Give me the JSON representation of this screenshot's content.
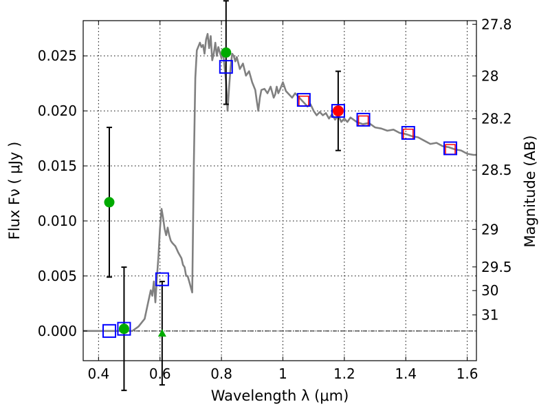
{
  "chart_data": {
    "type": "line",
    "xlabel": "Wavelength  λ (μm)",
    "ylabel": "Flux  Fν  ( μJy )",
    "y2label": "Magnitude (AB)",
    "xlim": [
      0.35,
      1.63
    ],
    "ylim": [
      -0.0027,
      0.0282
    ],
    "grid": true,
    "x_ticks": [
      {
        "value": 0.4,
        "label": "0.4"
      },
      {
        "value": 0.6,
        "label": "0.6"
      },
      {
        "value": 0.8,
        "label": "0.8"
      },
      {
        "value": 1.0,
        "label": "1"
      },
      {
        "value": 1.2,
        "label": "1.2"
      },
      {
        "value": 1.4,
        "label": "1.4"
      },
      {
        "value": 1.6,
        "label": "1.6"
      }
    ],
    "y_ticks": [
      {
        "value": 0.0,
        "label": "0.000"
      },
      {
        "value": 0.005,
        "label": "0.005"
      },
      {
        "value": 0.01,
        "label": "0.010"
      },
      {
        "value": 0.015,
        "label": "0.015"
      },
      {
        "value": 0.02,
        "label": "0.020"
      },
      {
        "value": 0.025,
        "label": "0.025"
      }
    ],
    "y2_ticks": [
      {
        "label": "27.8",
        "flux": 0.02787
      },
      {
        "label": "28",
        "flux": 0.02318
      },
      {
        "label": "28.2",
        "flux": 0.01928
      },
      {
        "label": "28.5",
        "flux": 0.01462
      },
      {
        "label": "29",
        "flux": 0.00923
      },
      {
        "label": "29.5",
        "flux": 0.00582
      },
      {
        "label": "30",
        "flux": 0.00367
      },
      {
        "label": "31",
        "flux": 0.00146
      }
    ],
    "series": [
      {
        "name": "model spectrum",
        "color": "#808080",
        "points": [
          [
            0.35,
            0.0
          ],
          [
            0.47,
            0.0
          ],
          [
            0.51,
            0.0
          ],
          [
            0.53,
            0.0004
          ],
          [
            0.55,
            0.0011
          ],
          [
            0.56,
            0.0024
          ],
          [
            0.57,
            0.0037
          ],
          [
            0.575,
            0.0032
          ],
          [
            0.58,
            0.0045
          ],
          [
            0.585,
            0.0026
          ],
          [
            0.59,
            0.0049
          ],
          [
            0.595,
            0.0068
          ],
          [
            0.6,
            0.0093
          ],
          [
            0.605,
            0.0111
          ],
          [
            0.61,
            0.0103
          ],
          [
            0.615,
            0.0093
          ],
          [
            0.62,
            0.0087
          ],
          [
            0.625,
            0.0094
          ],
          [
            0.63,
            0.0087
          ],
          [
            0.635,
            0.0082
          ],
          [
            0.64,
            0.008
          ],
          [
            0.65,
            0.0077
          ],
          [
            0.66,
            0.0071
          ],
          [
            0.67,
            0.0066
          ],
          [
            0.675,
            0.006
          ],
          [
            0.68,
            0.0058
          ],
          [
            0.685,
            0.005
          ],
          [
            0.69,
            0.005
          ],
          [
            0.695,
            0.0045
          ],
          [
            0.7,
            0.004
          ],
          [
            0.705,
            0.0035
          ],
          [
            0.71,
            0.015
          ],
          [
            0.715,
            0.023
          ],
          [
            0.72,
            0.0255
          ],
          [
            0.73,
            0.0262
          ],
          [
            0.735,
            0.0258
          ],
          [
            0.74,
            0.026
          ],
          [
            0.745,
            0.0252
          ],
          [
            0.75,
            0.0265
          ],
          [
            0.755,
            0.027
          ],
          [
            0.76,
            0.0257
          ],
          [
            0.765,
            0.0268
          ],
          [
            0.77,
            0.0246
          ],
          [
            0.775,
            0.0252
          ],
          [
            0.78,
            0.0262
          ],
          [
            0.785,
            0.025
          ],
          [
            0.79,
            0.0258
          ],
          [
            0.8,
            0.0248
          ],
          [
            0.805,
            0.0255
          ],
          [
            0.81,
            0.024
          ],
          [
            0.815,
            0.0227
          ],
          [
            0.82,
            0.02
          ],
          [
            0.825,
            0.0222
          ],
          [
            0.83,
            0.024
          ],
          [
            0.835,
            0.0252
          ],
          [
            0.84,
            0.025
          ],
          [
            0.845,
            0.0245
          ],
          [
            0.85,
            0.0249
          ],
          [
            0.86,
            0.0238
          ],
          [
            0.87,
            0.0243
          ],
          [
            0.88,
            0.0232
          ],
          [
            0.89,
            0.0236
          ],
          [
            0.9,
            0.0226
          ],
          [
            0.91,
            0.0219
          ],
          [
            0.915,
            0.0209
          ],
          [
            0.92,
            0.02
          ],
          [
            0.925,
            0.0212
          ],
          [
            0.93,
            0.0219
          ],
          [
            0.94,
            0.022
          ],
          [
            0.95,
            0.0216
          ],
          [
            0.96,
            0.0222
          ],
          [
            0.97,
            0.0212
          ],
          [
            0.975,
            0.0215
          ],
          [
            0.98,
            0.0222
          ],
          [
            0.985,
            0.0216
          ],
          [
            0.99,
            0.0219
          ],
          [
            1.0,
            0.0226
          ],
          [
            1.01,
            0.0218
          ],
          [
            1.02,
            0.0215
          ],
          [
            1.03,
            0.0212
          ],
          [
            1.04,
            0.0216
          ],
          [
            1.05,
            0.0213
          ],
          [
            1.06,
            0.021
          ],
          [
            1.07,
            0.0207
          ],
          [
            1.08,
            0.0204
          ],
          [
            1.09,
            0.0206
          ],
          [
            1.1,
            0.02
          ],
          [
            1.11,
            0.0196
          ],
          [
            1.12,
            0.0199
          ],
          [
            1.13,
            0.0196
          ],
          [
            1.14,
            0.0198
          ],
          [
            1.15,
            0.0193
          ],
          [
            1.16,
            0.0197
          ],
          [
            1.17,
            0.0192
          ],
          [
            1.18,
            0.0196
          ],
          [
            1.19,
            0.019
          ],
          [
            1.2,
            0.0193
          ],
          [
            1.21,
            0.019
          ],
          [
            1.22,
            0.0194
          ],
          [
            1.24,
            0.019
          ],
          [
            1.26,
            0.0188
          ],
          [
            1.28,
            0.0189
          ],
          [
            1.3,
            0.0185
          ],
          [
            1.32,
            0.0184
          ],
          [
            1.34,
            0.0182
          ],
          [
            1.36,
            0.0183
          ],
          [
            1.38,
            0.018
          ],
          [
            1.4,
            0.0179
          ],
          [
            1.42,
            0.0177
          ],
          [
            1.44,
            0.0176
          ],
          [
            1.46,
            0.0173
          ],
          [
            1.48,
            0.017
          ],
          [
            1.5,
            0.0171
          ],
          [
            1.52,
            0.0168
          ],
          [
            1.54,
            0.0167
          ],
          [
            1.56,
            0.0165
          ],
          [
            1.58,
            0.0164
          ],
          [
            1.6,
            0.0161
          ],
          [
            1.62,
            0.016
          ],
          [
            1.63,
            0.016
          ]
        ]
      },
      {
        "name": "blue squares",
        "color": "#0000ff",
        "points": [
          [
            0.435,
            0.0
          ],
          [
            0.483,
            0.0002
          ],
          [
            0.607,
            0.0047
          ],
          [
            0.815,
            0.024
          ],
          [
            1.068,
            0.021
          ],
          [
            1.18,
            0.02
          ],
          [
            1.262,
            0.0192
          ],
          [
            1.408,
            0.018
          ],
          [
            1.545,
            0.0166
          ]
        ]
      },
      {
        "name": "red squares",
        "color": "#ff0000",
        "points": [
          [
            1.068,
            0.0209
          ],
          [
            1.262,
            0.0191
          ],
          [
            1.408,
            0.0179
          ],
          [
            1.545,
            0.0165
          ]
        ]
      },
      {
        "name": "green circles",
        "color": "#00aa00",
        "points": [
          [
            0.435,
            0.0117,
            0.0068
          ],
          [
            0.483,
            0.0002,
            0.0056
          ],
          [
            0.815,
            0.0253,
            0.0047
          ]
        ]
      },
      {
        "name": "green upper-limit triangle",
        "color": "#00aa00",
        "points": [
          [
            0.607,
            -0.0002,
            0.0047
          ]
        ]
      },
      {
        "name": "red circle",
        "color": "#ff0000",
        "points": [
          [
            1.18,
            0.02,
            0.0036
          ]
        ]
      }
    ]
  }
}
